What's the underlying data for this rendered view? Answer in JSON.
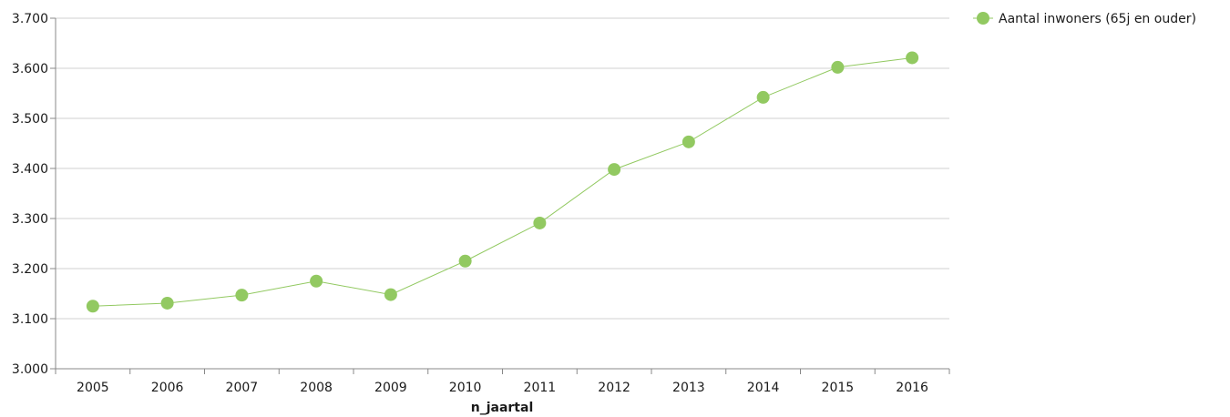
{
  "chart_data": {
    "type": "line",
    "title": "",
    "xlabel": "n_jaartal",
    "ylabel": "",
    "categories": [
      "2005",
      "2006",
      "2007",
      "2008",
      "2009",
      "2010",
      "2011",
      "2012",
      "2013",
      "2014",
      "2015",
      "2016"
    ],
    "series": [
      {
        "name": "Aantal inwoners (65j en ouder)",
        "values": [
          3125,
          3131,
          3147,
          3175,
          3148,
          3215,
          3291,
          3398,
          3453,
          3542,
          3602,
          3621
        ],
        "color": "#92c961"
      }
    ],
    "ylim": [
      3000,
      3700
    ],
    "yticks": [
      3000,
      3100,
      3200,
      3300,
      3400,
      3500,
      3600,
      3700
    ],
    "ytick_labels": [
      "3.000",
      "3.100",
      "3.200",
      "3.300",
      "3.400",
      "3.500",
      "3.600",
      "3.700"
    ],
    "grid": true,
    "legend_position": "top-right"
  }
}
